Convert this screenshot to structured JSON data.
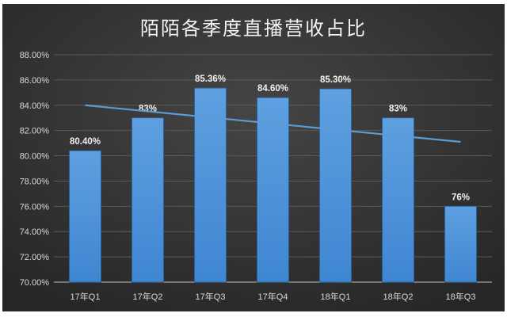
{
  "chart_data": {
    "type": "bar",
    "title": "陌陌各季度直播营收占比",
    "categories": [
      "17年Q1",
      "17年Q2",
      "17年Q3",
      "17年Q4",
      "18年Q1",
      "18年Q2",
      "18年Q3"
    ],
    "values": [
      80.4,
      83,
      85.36,
      84.6,
      85.3,
      83,
      76
    ],
    "data_labels": [
      "80.40%",
      "83%",
      "85.36%",
      "84.60%",
      "85.30%",
      "83%",
      "76%"
    ],
    "ylim": [
      70,
      88
    ],
    "y_ticks": [
      "70.00%",
      "72.00%",
      "74.00%",
      "76.00%",
      "78.00%",
      "80.00%",
      "82.00%",
      "84.00%",
      "86.00%",
      "88.00%"
    ],
    "y_tick_values": [
      70,
      72,
      74,
      76,
      78,
      80,
      82,
      84,
      86,
      88
    ],
    "grid": true,
    "trendline": {
      "type": "linear",
      "start": 84.0,
      "end": 81.1
    },
    "colors": {
      "bar": "#4a90d9",
      "trendline": "#5b9bd5",
      "background": "#333333",
      "text": "#d9d9d9"
    }
  }
}
